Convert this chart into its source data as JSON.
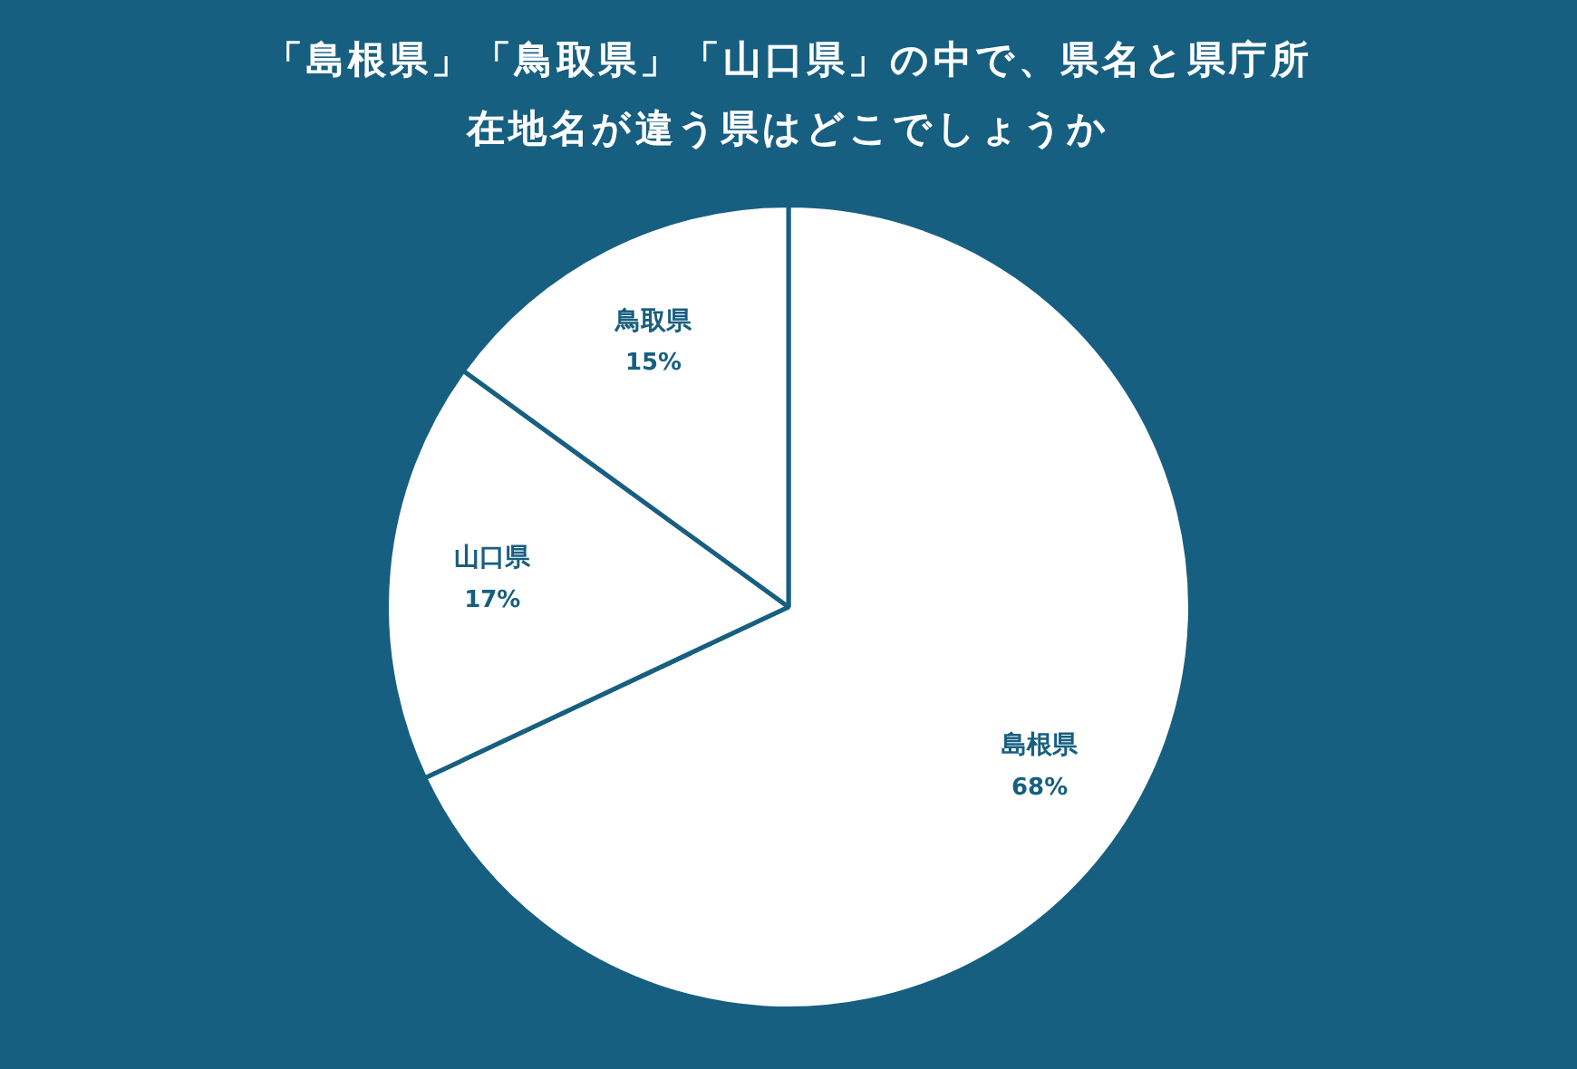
{
  "chart_data": {
    "type": "pie",
    "title": "「島根県」「鳥取県」「山口県」の中で、県名と県庁所在地名が違う県はどこでしょうか",
    "categories": [
      "島根県",
      "山口県",
      "鳥取県"
    ],
    "values": [
      68,
      17,
      15
    ],
    "value_labels": [
      "68%",
      "17%",
      "15%"
    ],
    "colors": [
      "#ffffff",
      "#ffffff",
      "#ffffff"
    ],
    "legend": false
  }
}
